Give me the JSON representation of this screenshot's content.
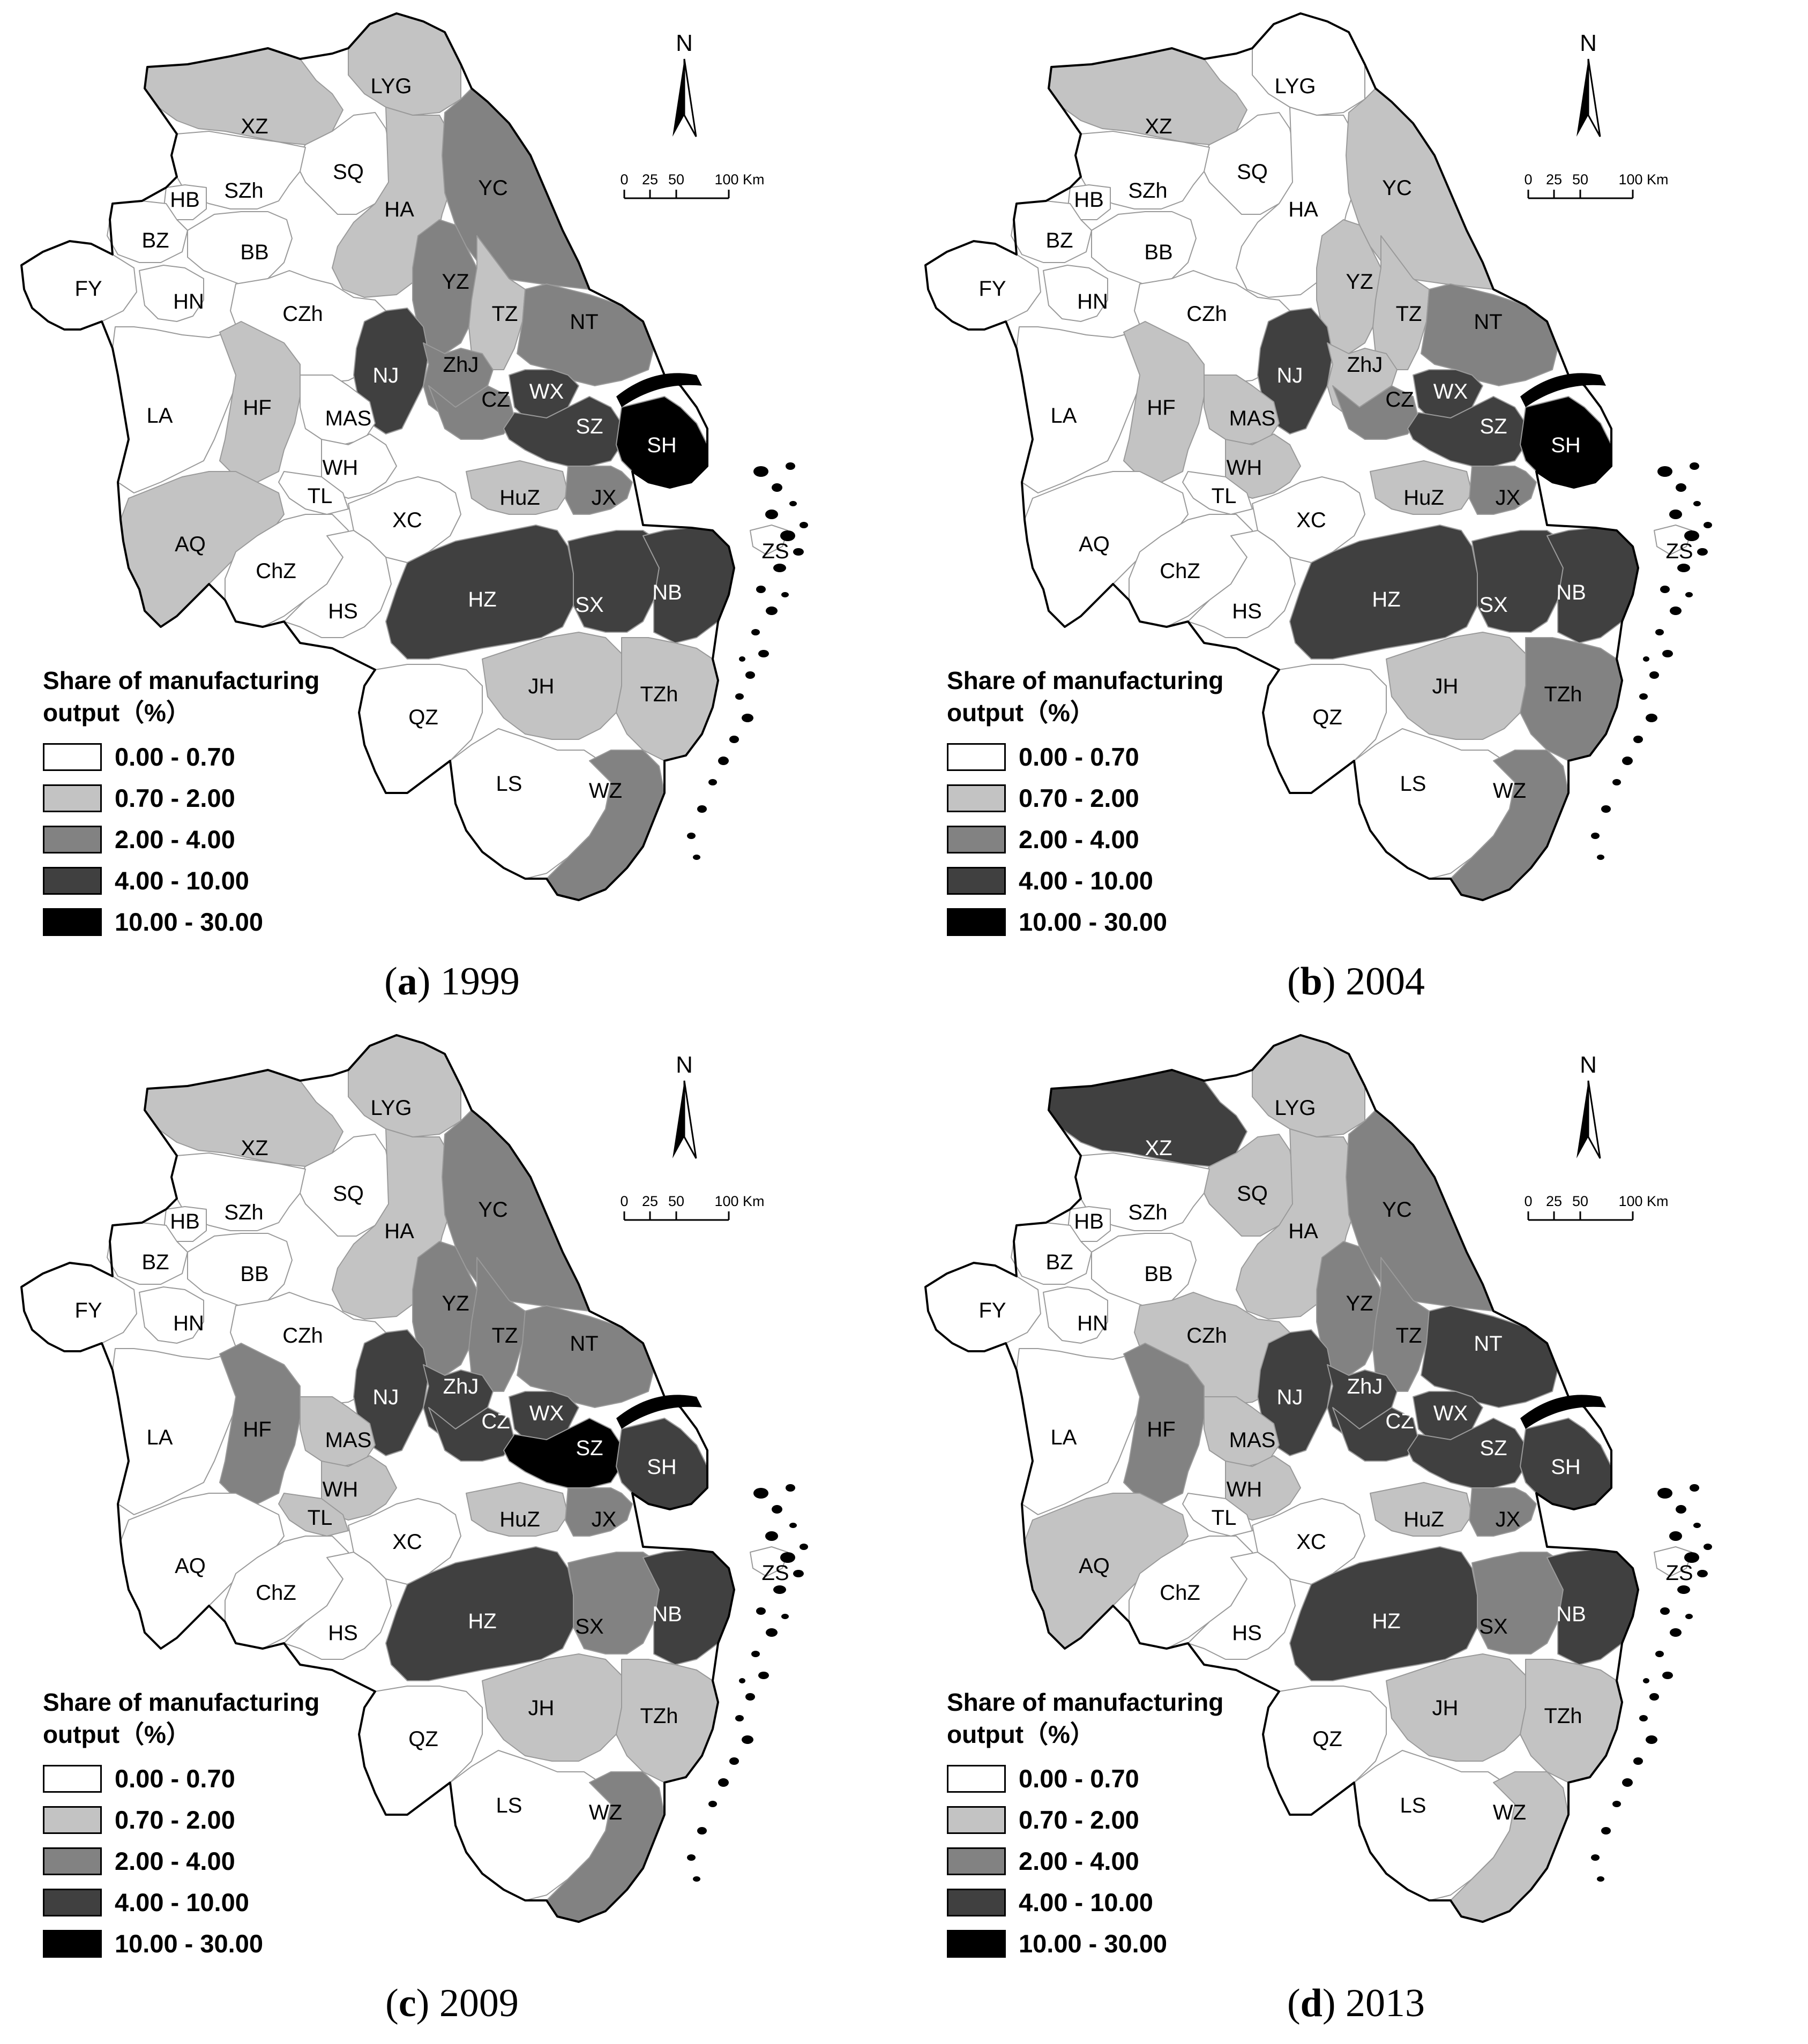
{
  "legend": {
    "title_line1": "Share of manufacturing",
    "title_line2": "output（%）",
    "classes": [
      {
        "label": "0.00 - 0.70",
        "color": "#ffffff"
      },
      {
        "label": "0.70 - 2.00",
        "color": "#c3c3c3"
      },
      {
        "label": "2.00 - 4.00",
        "color": "#828282"
      },
      {
        "label": "4.00 - 10.00",
        "color": "#404040"
      },
      {
        "label": "10.00 - 30.00",
        "color": "#000000"
      }
    ]
  },
  "north_arrow_label": "N",
  "scale_bar": {
    "labels": [
      "0",
      "25",
      "50",
      "100 Km"
    ]
  },
  "regions": [
    "XZ",
    "LYG",
    "SQ",
    "SZh",
    "HB",
    "BZ",
    "BB",
    "FY",
    "HN",
    "HA",
    "YC",
    "YZ",
    "TZ",
    "NT",
    "CZh",
    "NJ",
    "ZhJ",
    "CZ",
    "WX",
    "SZ",
    "SH",
    "LA",
    "HF",
    "MAS",
    "WH",
    "TL",
    "AQ",
    "ChZ",
    "HS",
    "XC",
    "HuZ",
    "JX",
    "ZS",
    "HZ",
    "SX",
    "NB",
    "JH",
    "TZh",
    "QZ",
    "LS",
    "WZ"
  ],
  "panels": [
    {
      "letter": "a",
      "year": "1999",
      "classes": {
        "XZ": 1,
        "LYG": 1,
        "SQ": 0,
        "SZh": 0,
        "HB": 0,
        "BZ": 0,
        "BB": 0,
        "FY": 0,
        "HN": 0,
        "HA": 1,
        "YC": 2,
        "YZ": 2,
        "TZ": 1,
        "NT": 2,
        "CZh": 0,
        "NJ": 3,
        "ZhJ": 2,
        "CZ": 2,
        "WX": 3,
        "SZ": 3,
        "SH": 4,
        "LA": 0,
        "HF": 1,
        "MAS": 0,
        "WH": 0,
        "TL": 0,
        "AQ": 1,
        "ChZ": 0,
        "HS": 0,
        "XC": 0,
        "HuZ": 1,
        "JX": 2,
        "ZS": 0,
        "HZ": 3,
        "SX": 3,
        "NB": 3,
        "JH": 1,
        "TZh": 1,
        "QZ": 0,
        "LS": 0,
        "WZ": 2
      }
    },
    {
      "letter": "b",
      "year": "2004",
      "classes": {
        "XZ": 1,
        "LYG": 0,
        "SQ": 0,
        "SZh": 0,
        "HB": 0,
        "BZ": 0,
        "BB": 0,
        "FY": 0,
        "HN": 0,
        "HA": 0,
        "YC": 1,
        "YZ": 1,
        "TZ": 1,
        "NT": 2,
        "CZh": 0,
        "NJ": 3,
        "ZhJ": 1,
        "CZ": 2,
        "WX": 3,
        "SZ": 3,
        "SH": 4,
        "LA": 0,
        "HF": 1,
        "MAS": 1,
        "WH": 1,
        "TL": 0,
        "AQ": 0,
        "ChZ": 0,
        "HS": 0,
        "XC": 0,
        "HuZ": 1,
        "JX": 2,
        "ZS": 0,
        "HZ": 3,
        "SX": 3,
        "NB": 3,
        "JH": 1,
        "TZh": 2,
        "QZ": 0,
        "LS": 0,
        "WZ": 2
      }
    },
    {
      "letter": "c",
      "year": "2009",
      "classes": {
        "XZ": 1,
        "LYG": 1,
        "SQ": 0,
        "SZh": 0,
        "HB": 0,
        "BZ": 0,
        "BB": 0,
        "FY": 0,
        "HN": 0,
        "HA": 1,
        "YC": 2,
        "YZ": 2,
        "TZ": 2,
        "NT": 2,
        "CZh": 0,
        "NJ": 3,
        "ZhJ": 3,
        "CZ": 3,
        "WX": 3,
        "SZ": 4,
        "SH": 3,
        "LA": 0,
        "HF": 2,
        "MAS": 1,
        "WH": 1,
        "TL": 1,
        "AQ": 0,
        "ChZ": 0,
        "HS": 0,
        "XC": 0,
        "HuZ": 1,
        "JX": 2,
        "ZS": 0,
        "HZ": 3,
        "SX": 2,
        "NB": 3,
        "JH": 1,
        "TZh": 1,
        "QZ": 0,
        "LS": 0,
        "WZ": 2
      }
    },
    {
      "letter": "d",
      "year": "2013",
      "classes": {
        "XZ": 3,
        "LYG": 1,
        "SQ": 1,
        "SZh": 0,
        "HB": 0,
        "BZ": 0,
        "BB": 0,
        "FY": 0,
        "HN": 0,
        "HA": 1,
        "YC": 2,
        "YZ": 2,
        "TZ": 2,
        "NT": 3,
        "CZh": 1,
        "NJ": 3,
        "ZhJ": 3,
        "CZ": 3,
        "WX": 3,
        "SZ": 3,
        "SH": 3,
        "LA": 0,
        "HF": 2,
        "MAS": 1,
        "WH": 1,
        "TL": 0,
        "AQ": 1,
        "ChZ": 0,
        "HS": 0,
        "XC": 0,
        "HuZ": 1,
        "JX": 2,
        "ZS": 0,
        "HZ": 3,
        "SX": 2,
        "NB": 3,
        "JH": 1,
        "TZh": 1,
        "QZ": 0,
        "LS": 0,
        "WZ": 1
      }
    }
  ]
}
